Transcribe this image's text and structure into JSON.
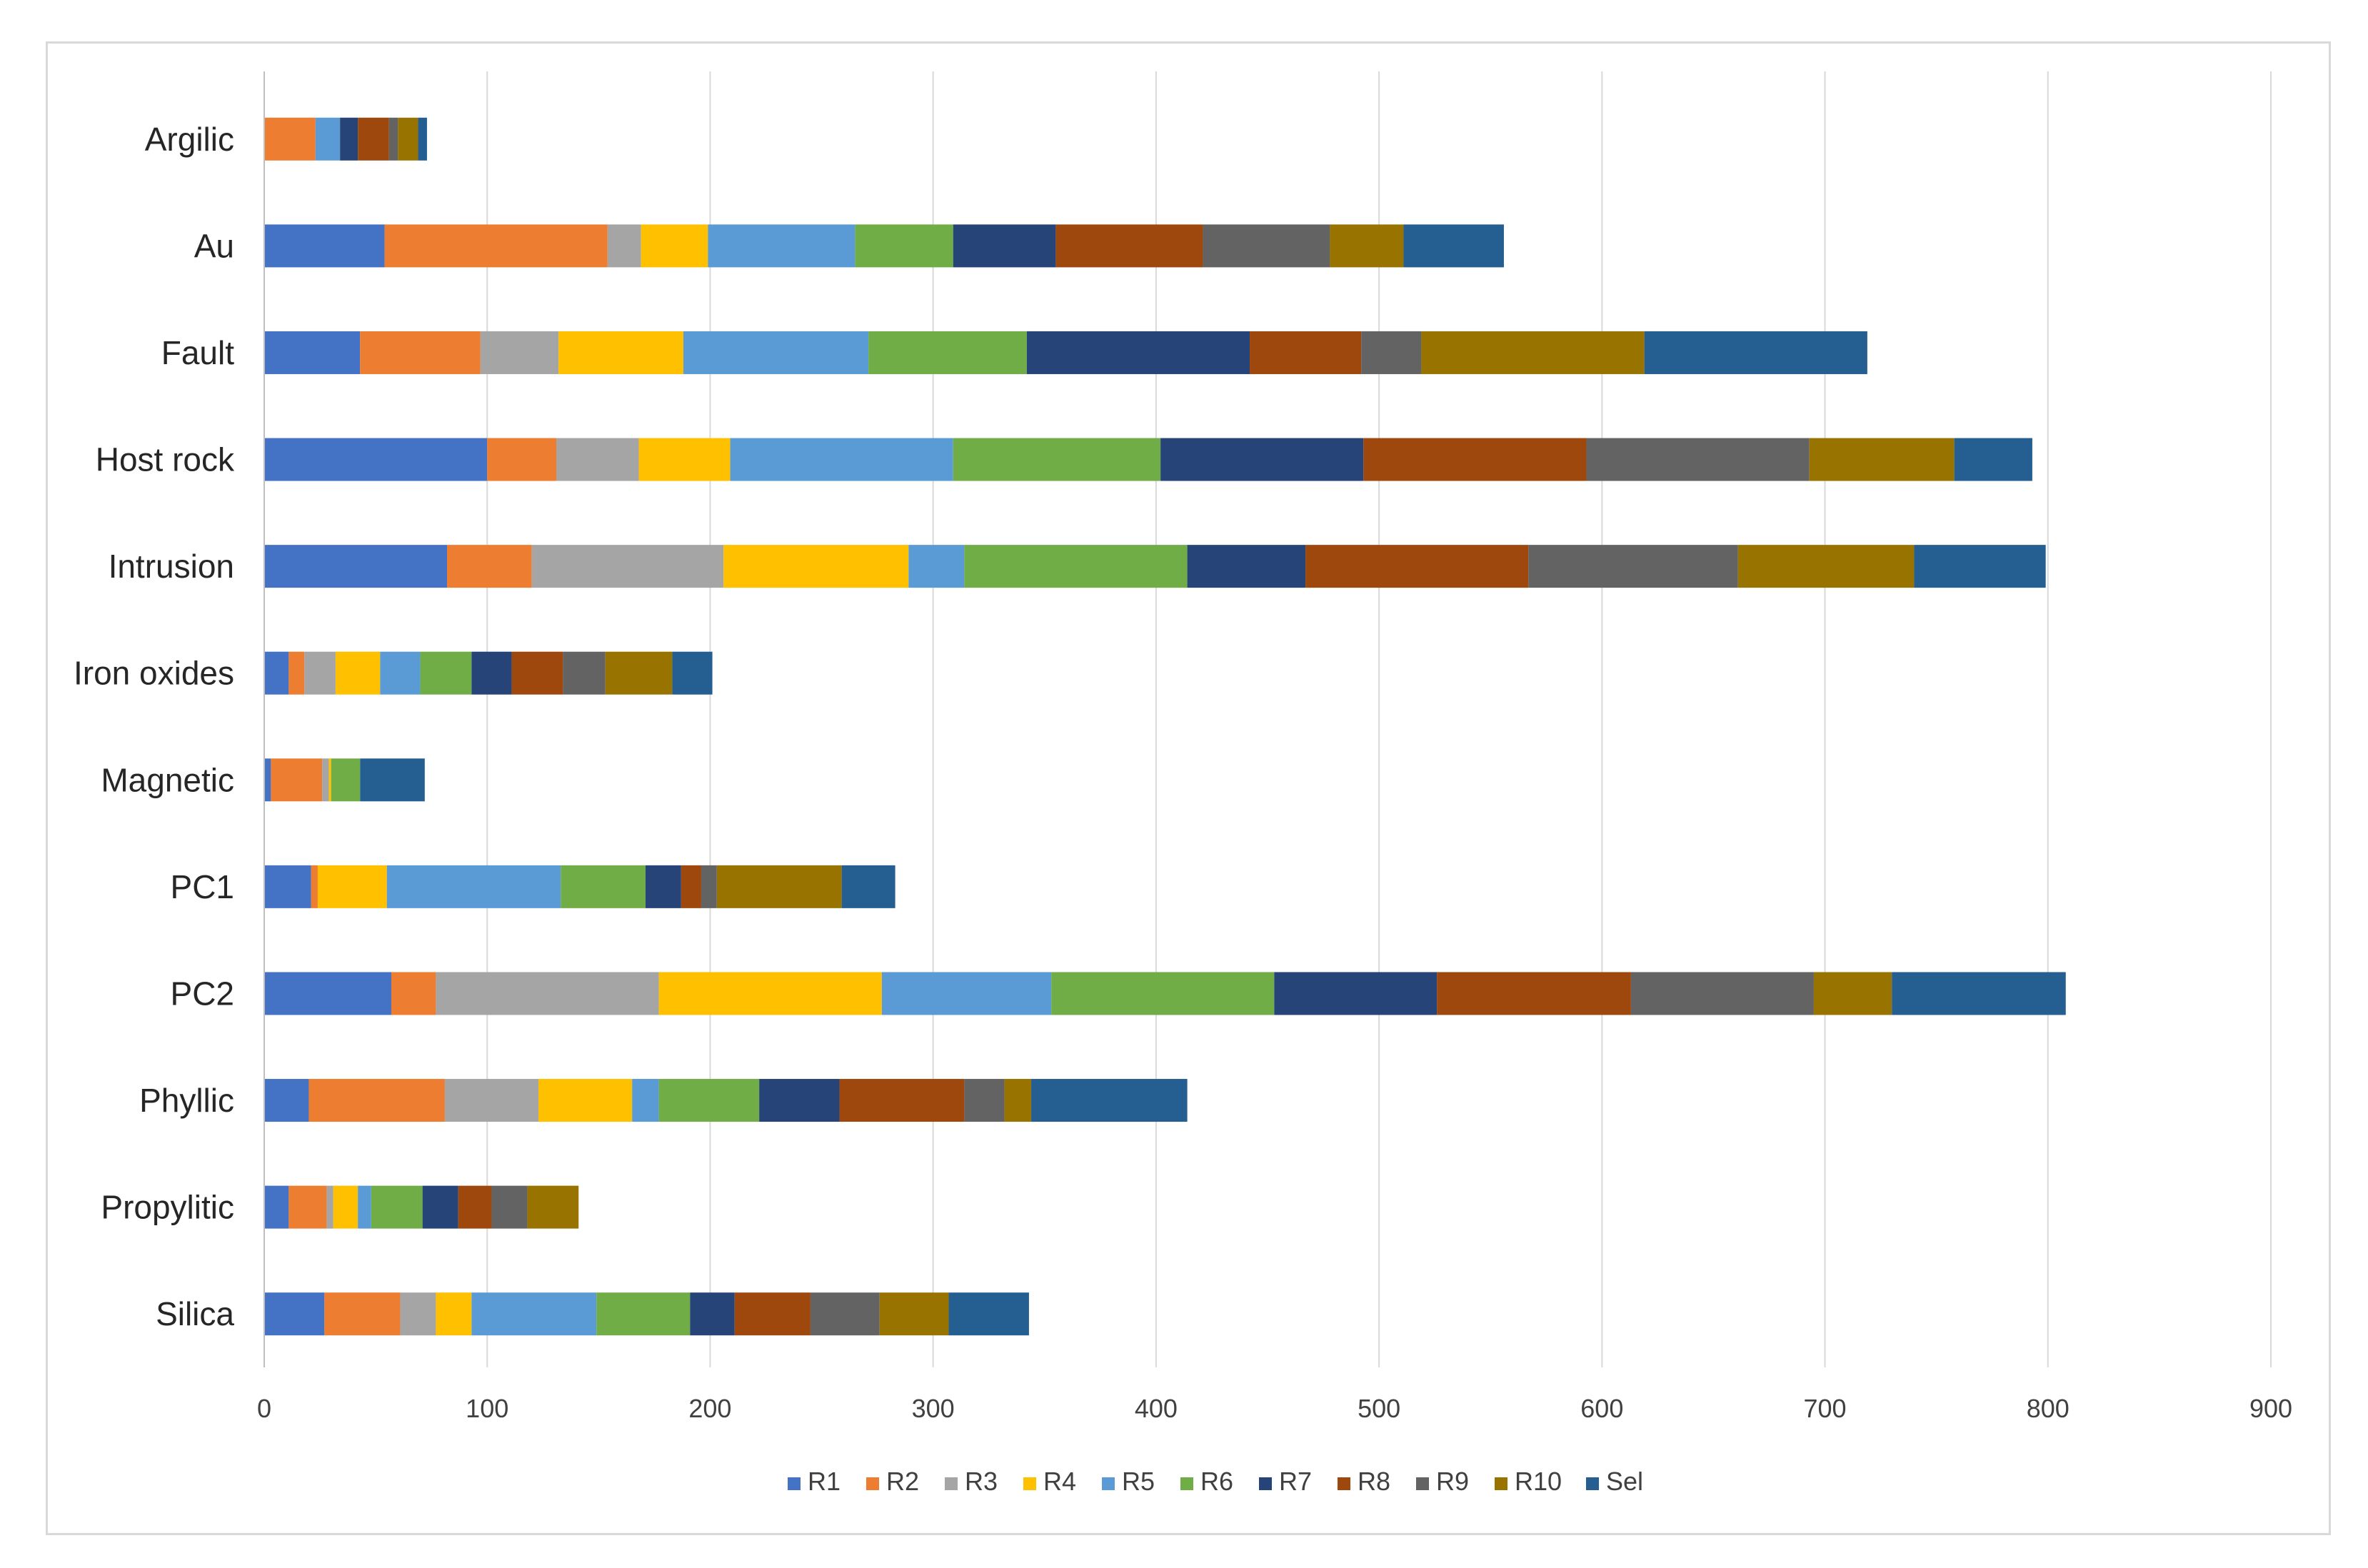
{
  "chart_data": {
    "type": "bar",
    "orientation": "horizontal",
    "stacked": true,
    "title": "",
    "xlabel": "",
    "ylabel": "",
    "xlim": [
      0,
      900
    ],
    "xticks": [
      "0",
      "100",
      "200",
      "300",
      "400",
      "500",
      "600",
      "700",
      "800",
      "900"
    ],
    "grid": true,
    "legend_position": "bottom",
    "categories": [
      "Argilic",
      "Au",
      "Fault",
      "Host rock",
      "Intrusion",
      "Iron oxides",
      "Magnetic",
      "PC1",
      "PC2",
      "Phyllic",
      "Propylitic",
      "Silica"
    ],
    "series": [
      {
        "name": "R1",
        "color": "#4472C4",
        "values": [
          0,
          54,
          43,
          100,
          82,
          11,
          3,
          21,
          57,
          20,
          11,
          27
        ]
      },
      {
        "name": "R2",
        "color": "#ED7D31",
        "values": [
          23,
          100,
          54,
          31,
          38,
          7,
          23,
          3,
          20,
          61,
          17,
          34
        ]
      },
      {
        "name": "R3",
        "color": "#A5A5A5",
        "values": [
          0,
          15,
          35,
          37,
          86,
          14,
          3,
          0,
          100,
          42,
          3,
          16
        ]
      },
      {
        "name": "R4",
        "color": "#FFC000",
        "values": [
          0,
          30,
          56,
          41,
          83,
          20,
          1,
          31,
          100,
          42,
          11,
          16
        ]
      },
      {
        "name": "R5",
        "color": "#5B9BD5",
        "values": [
          11,
          66,
          83,
          100,
          25,
          18,
          0,
          78,
          76,
          12,
          6,
          56
        ]
      },
      {
        "name": "R6",
        "color": "#70AD47",
        "values": [
          0,
          44,
          71,
          93,
          100,
          23,
          13,
          38,
          100,
          45,
          23,
          42
        ]
      },
      {
        "name": "R7",
        "color": "#264478",
        "values": [
          8,
          46,
          100,
          91,
          53,
          18,
          0,
          16,
          73,
          36,
          16,
          20
        ]
      },
      {
        "name": "R8",
        "color": "#9E480E",
        "values": [
          14,
          66,
          50,
          100,
          100,
          23,
          0,
          9,
          87,
          56,
          15,
          34
        ]
      },
      {
        "name": "R9",
        "color": "#636363",
        "values": [
          4,
          57,
          27,
          100,
          94,
          19,
          0,
          7,
          82,
          18,
          16,
          31
        ]
      },
      {
        "name": "R10",
        "color": "#997300",
        "values": [
          9,
          33,
          100,
          65,
          79,
          30,
          0,
          56,
          35,
          12,
          23,
          31
        ]
      },
      {
        "name": "Sel",
        "color": "#255E91",
        "values": [
          4,
          45,
          100,
          35,
          59,
          18,
          29,
          24,
          78,
          70,
          0,
          36
        ]
      }
    ]
  }
}
